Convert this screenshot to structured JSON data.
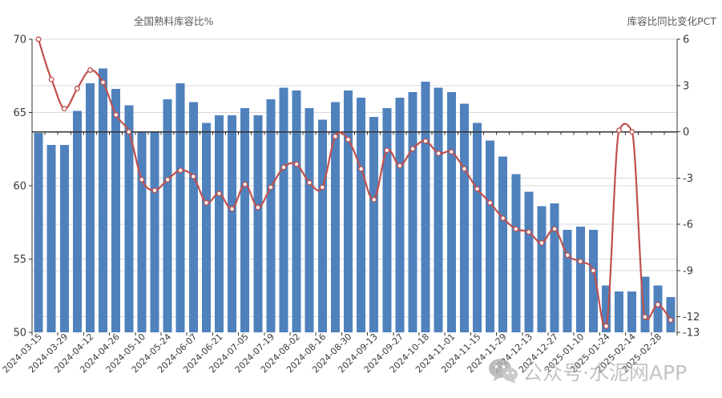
{
  "chart": {
    "left_axis_title": "全国熟料库容比%",
    "right_axis_title": "库容比同比变化PCT",
    "watermark_text": "公众号·水泥网APP",
    "watermark_icon": "wechat-icon",
    "colors": {
      "bar": "#4F81BD",
      "line": "#C0504D",
      "marker_fill": "#FFFFFF",
      "grid": "#D9D9D9",
      "axis": "#333333",
      "tick_text": "#3A3A3A",
      "title_text": "#595959",
      "watermark": "#B5B5B5",
      "background": "#FFFFFF"
    }
  },
  "chart_data": {
    "type": "bar+line combo, dual axis",
    "categories": [
      "2024-03-15",
      "2024-03-22",
      "2024-03-29",
      "2024-04-05",
      "2024-04-12",
      "2024-04-19",
      "2024-04-26",
      "2024-05-03",
      "2024-05-10",
      "2024-05-17",
      "2024-05-24",
      "2024-05-31",
      "2024-06-07",
      "2024-06-14",
      "2024-06-21",
      "2024-06-28",
      "2024-07-05",
      "2024-07-12",
      "2024-07-19",
      "2024-07-26",
      "2024-08-02",
      "2024-08-09",
      "2024-08-16",
      "2024-08-23",
      "2024-08-30",
      "2024-09-06",
      "2024-09-13",
      "2024-09-20",
      "2024-09-27",
      "2024-10-11",
      "2024-10-18",
      "2024-10-25",
      "2024-11-01",
      "2024-11-08",
      "2024-11-15",
      "2024-11-22",
      "2024-11-29",
      "2024-12-06",
      "2024-12-13",
      "2024-12-20",
      "2024-12-27",
      "2025-01-03",
      "2025-01-10",
      "2025-01-17",
      "2025-01-24",
      "2025-02-07",
      "2025-02-14",
      "2025-02-21",
      "2025-02-28",
      "2025-03-07"
    ],
    "x_labels_shown": [
      "2024-03-15",
      "2024-03-29",
      "2024-04-12",
      "2024-04-26",
      "2024-05-10",
      "2024-05-24",
      "2024-06-07",
      "2024-06-21",
      "2024-07-05",
      "2024-07-19",
      "2024-08-02",
      "2024-08-16",
      "2024-08-30",
      "2024-09-13",
      "2024-09-27",
      "2024-10-18",
      "2024-11-01",
      "2024-11-15",
      "2024-11-29",
      "2024-12-13",
      "2024-12-27",
      "2025-01-10",
      "2025-01-24",
      "2025-02-14",
      "2025-02-28"
    ],
    "label_every": 2,
    "series": [
      {
        "name": "全国熟料库容比%",
        "type": "bar",
        "axis": "left",
        "values": [
          63.6,
          62.8,
          62.8,
          65.1,
          67.0,
          68.0,
          66.6,
          65.5,
          63.7,
          63.7,
          65.9,
          67.0,
          65.7,
          64.3,
          64.8,
          64.8,
          65.3,
          64.8,
          65.9,
          66.7,
          66.5,
          65.3,
          64.5,
          65.7,
          66.5,
          66.0,
          64.7,
          65.3,
          66.0,
          66.4,
          67.1,
          66.7,
          66.4,
          65.6,
          64.3,
          63.1,
          62.0,
          60.8,
          59.6,
          58.6,
          58.8,
          57.0,
          57.2,
          57.0,
          53.2,
          52.8,
          52.8,
          53.8,
          53.2,
          52.4
        ]
      },
      {
        "name": "库容比同比变化PCT",
        "type": "line",
        "axis": "right",
        "values": [
          6.0,
          3.4,
          1.5,
          2.8,
          4.0,
          3.2,
          1.1,
          0.0,
          -3.1,
          -3.8,
          -3.1,
          -2.5,
          -2.9,
          -4.6,
          -4.0,
          -5.0,
          -3.4,
          -4.9,
          -3.6,
          -2.3,
          -2.1,
          -3.3,
          -3.6,
          -0.3,
          -0.5,
          -2.4,
          -4.4,
          -1.2,
          -2.2,
          -1.1,
          -0.6,
          -1.4,
          -1.3,
          -2.4,
          -3.7,
          -4.6,
          -5.6,
          -6.3,
          -6.5,
          -7.2,
          -6.3,
          -8.0,
          -8.4,
          -9.0,
          -12.6,
          0.1,
          0.0,
          -12.0,
          -11.2,
          -12.2
        ]
      }
    ],
    "left_axis": {
      "min": 50,
      "max": 70,
      "ticks": [
        70,
        65,
        60,
        55,
        50
      ]
    },
    "right_axis": {
      "min": -13,
      "max": 6,
      "ticks": [
        6,
        3,
        0,
        -3,
        -6,
        -9,
        -12,
        -13
      ],
      "category_axis_crosses_at": 0
    },
    "grid": true,
    "legend": "none"
  }
}
